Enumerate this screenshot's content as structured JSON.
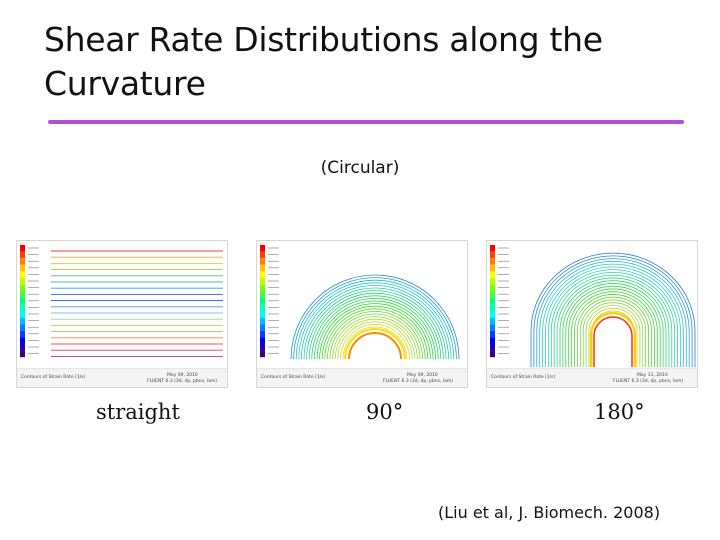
{
  "slide": {
    "title": "Shear Rate Distributions along the Curvature",
    "subtitle": "(Circular)",
    "citation": "(Liu et al, J. Biomech. 2008)"
  },
  "panels": [
    {
      "label": "straight"
    },
    {
      "label": "90°"
    },
    {
      "label": "180°"
    }
  ],
  "colors": {
    "rule": "#b24fd4"
  }
}
